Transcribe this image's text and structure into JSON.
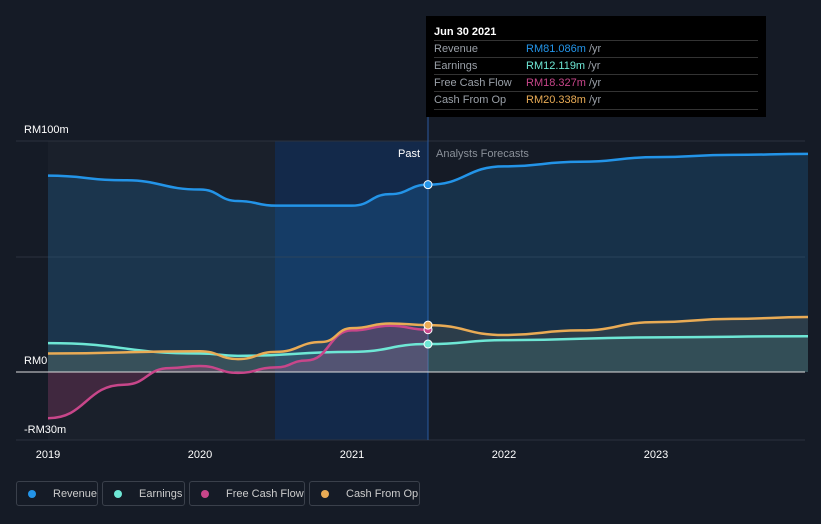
{
  "tooltip": {
    "date": "Jun 30 2021",
    "rows": [
      {
        "label": "Revenue",
        "value": "RM81.086m",
        "unit": "/yr",
        "color": "#2394e8"
      },
      {
        "label": "Earnings",
        "value": "RM12.119m",
        "unit": "/yr",
        "color": "#6ee7d5"
      },
      {
        "label": "Free Cash Flow",
        "value": "RM18.327m",
        "unit": "/yr",
        "color": "#c8468a"
      },
      {
        "label": "Cash From Op",
        "value": "RM20.338m",
        "unit": "/yr",
        "color": "#e9ab55"
      }
    ]
  },
  "chart_data": {
    "type": "line",
    "y_tick_labels": [
      "RM100m",
      "RM0",
      "-RM30m"
    ],
    "x_tick_labels": [
      "2019",
      "2020",
      "2021",
      "2022",
      "2023"
    ],
    "ylim": [
      -30,
      100
    ],
    "past_label": "Past",
    "forecast_label": "Analysts Forecasts",
    "divider_x": 2021.5,
    "series": [
      {
        "name": "Revenue",
        "color": "#2394e8",
        "x": [
          2019,
          2019.5,
          2020,
          2020.25,
          2020.5,
          2020.75,
          2021,
          2021.25,
          2021.5,
          2022,
          2022.5,
          2023,
          2023.5,
          2024
        ],
        "values": [
          85,
          83,
          79,
          74,
          72,
          72,
          72,
          77,
          81.1,
          89,
          91,
          93,
          94,
          94.4
        ]
      },
      {
        "name": "Earnings",
        "color": "#6ee7d5",
        "x": [
          2019,
          2020,
          2020.25,
          2021,
          2021.5,
          2022,
          2023,
          2024
        ],
        "values": [
          12.5,
          8,
          7,
          8.7,
          12.1,
          13.8,
          15,
          15.5
        ]
      },
      {
        "name": "Free Cash Flow",
        "color": "#c8468a",
        "x": [
          2019,
          2019.5,
          2019.8,
          2020,
          2020.25,
          2020.5,
          2020.7,
          2021,
          2021.25,
          2021.5
        ],
        "values": [
          -20,
          -5.5,
          1.7,
          2.6,
          -0.4,
          2,
          5,
          18,
          20,
          18.3
        ]
      },
      {
        "name": "Cash From Op",
        "color": "#e9ab55",
        "x": [
          2019,
          2020,
          2020.25,
          2020.5,
          2020.8,
          2021,
          2021.25,
          2021.5,
          2022,
          2022.5,
          2023,
          2023.5,
          2024
        ],
        "values": [
          8,
          9,
          5.6,
          8.7,
          13,
          19,
          21,
          20.3,
          16,
          18,
          21.6,
          23,
          23.8
        ]
      }
    ]
  }
}
